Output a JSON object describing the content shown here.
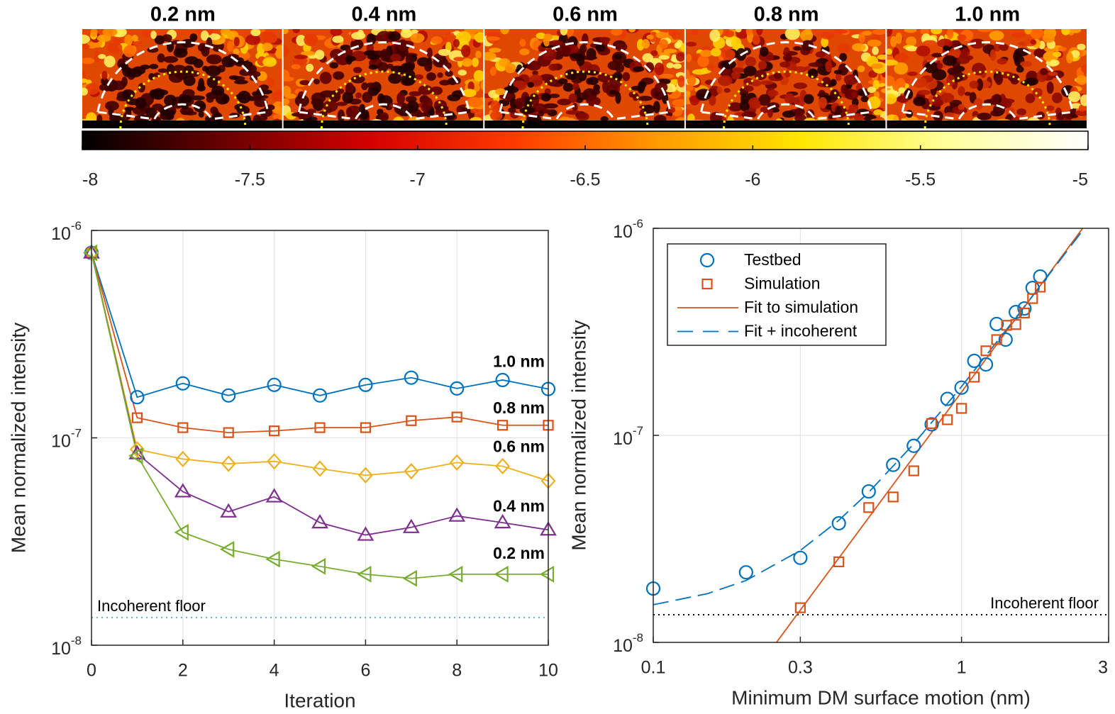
{
  "chart_data": [
    {
      "type": "colorbar",
      "panels": [
        "0.2 nm",
        "0.4 nm",
        "0.6 nm",
        "0.8 nm",
        "1.0 nm"
      ],
      "colors": [
        "#000000",
        "#6b0000",
        "#d40000",
        "#ff3a00",
        "#ff9a00",
        "#ffe600",
        "#ffff9a",
        "#ffffff"
      ],
      "xlim": [
        -8,
        -5
      ],
      "xticks": [
        -8,
        -7.5,
        -7,
        -6.5,
        -6,
        -5.5,
        -5
      ]
    },
    {
      "type": "line",
      "xlabel": "Iteration",
      "ylabel": "Mean normalized intensity",
      "x": [
        0,
        1,
        2,
        3,
        4,
        5,
        6,
        7,
        8,
        9,
        10
      ],
      "xlim": [
        0,
        10
      ],
      "xticks": [
        0,
        2,
        4,
        6,
        8,
        10
      ],
      "ylim": [
        1e-08,
        1e-06
      ],
      "log_y": true,
      "grid": true,
      "yticks": [
        {
          "value": 1e-08,
          "label": "10^-8"
        },
        {
          "value": 1e-07,
          "label": "10^-7"
        },
        {
          "value": 1e-06,
          "label": "10^-6"
        }
      ],
      "series": [
        {
          "name": "1.0 nm",
          "color": "#0072BD",
          "marker": "circle",
          "values": [
            7.8e-07,
            1.57e-07,
            1.83e-07,
            1.6e-07,
            1.8e-07,
            1.6e-07,
            1.8e-07,
            1.95e-07,
            1.73e-07,
            1.9e-07,
            1.72e-07
          ]
        },
        {
          "name": "0.8 nm",
          "color": "#D95319",
          "marker": "square",
          "values": [
            7.8e-07,
            1.25e-07,
            1.12e-07,
            1.06e-07,
            1.08e-07,
            1.12e-07,
            1.12e-07,
            1.21e-07,
            1.26e-07,
            1.15e-07,
            1.15e-07
          ]
        },
        {
          "name": "0.6 nm",
          "color": "#EDB120",
          "marker": "diamond",
          "values": [
            7.8e-07,
            8.8e-08,
            7.9e-08,
            7.5e-08,
            7.7e-08,
            7.1e-08,
            6.6e-08,
            6.9e-08,
            7.6e-08,
            7.3e-08,
            6.2e-08
          ]
        },
        {
          "name": "0.4 nm",
          "color": "#7E2F8E",
          "marker": "triangle-up",
          "values": [
            7.8e-07,
            8.4e-08,
            5.5e-08,
            4.4e-08,
            5.2e-08,
            3.9e-08,
            3.4e-08,
            3.7e-08,
            4.2e-08,
            3.9e-08,
            3.6e-08
          ]
        },
        {
          "name": "0.2 nm",
          "color": "#77AC30",
          "marker": "triangle-left",
          "values": [
            7.8e-07,
            8.2e-08,
            3.5e-08,
            2.9e-08,
            2.6e-08,
            2.4e-08,
            2.2e-08,
            2.1e-08,
            2.2e-08,
            2.2e-08,
            2.2e-08
          ]
        }
      ],
      "floor": {
        "label": "Incoherent floor",
        "value": 1.36e-08,
        "color": "#4DBEEE"
      }
    },
    {
      "type": "scatter",
      "xlabel": "Minimum DM surface motion (nm)",
      "ylabel": "Mean normalized intensity",
      "xlim": [
        0.1,
        3
      ],
      "xticks": [
        0.1,
        0.3,
        1,
        3
      ],
      "log_x": true,
      "ylim": [
        1e-08,
        1e-06
      ],
      "log_y": true,
      "grid": true,
      "legend": "upper left",
      "yticks": [
        {
          "value": 1e-08,
          "label": "10^-8"
        },
        {
          "value": 1e-07,
          "label": "10^-7"
        },
        {
          "value": 1e-06,
          "label": "10^-6"
        }
      ],
      "series": [
        {
          "name": "Testbed",
          "color": "#0072BD",
          "marker": "circle",
          "mode": "markers",
          "x": [
            0.1,
            0.2,
            0.3,
            0.4,
            0.5,
            0.6,
            0.7,
            0.8,
            0.9,
            1.0,
            1.1,
            1.2,
            1.3,
            1.39,
            1.5,
            1.6,
            1.7,
            1.8
          ],
          "values": [
            1.82e-08,
            2.18e-08,
            2.56e-08,
            3.76e-08,
            5.36e-08,
            7.2e-08,
            8.9e-08,
            1.13e-07,
            1.5e-07,
            1.7e-07,
            2.29e-07,
            2.2e-07,
            3.45e-07,
            2.9e-07,
            3.94e-07,
            4.1e-07,
            5.15e-07,
            5.85e-07
          ]
        },
        {
          "name": "Simulation",
          "color": "#D95319",
          "marker": "square",
          "mode": "markers",
          "x": [
            0.3,
            0.4,
            0.5,
            0.6,
            0.7,
            0.8,
            0.9,
            1.0,
            1.1,
            1.2,
            1.3,
            1.4,
            1.5,
            1.6,
            1.7,
            1.8
          ],
          "values": [
            1.47e-08,
            2.45e-08,
            4.48e-08,
            5.04e-08,
            6.74e-08,
            1.14e-07,
            1.19e-07,
            1.35e-07,
            1.91e-07,
            2.56e-07,
            2.9e-07,
            3.4e-07,
            3.43e-07,
            3.9e-07,
            4.58e-07,
            5.2e-07
          ]
        },
        {
          "name": "Fit to simulation",
          "color": "#D95319",
          "mode": "line",
          "dash": "solid",
          "x": [
            0.251,
            2.47
          ],
          "values": [
            1e-08,
            1e-06
          ]
        },
        {
          "name": "Fit + incoherent",
          "color": "#0072BD",
          "mode": "line",
          "dash": "dashed",
          "x": [
            0.1,
            0.15,
            0.2,
            0.3,
            0.4,
            0.5,
            0.7,
            1,
            1.5,
            2,
            2.45
          ],
          "values": [
            1.52e-08,
            1.72e-08,
            1.99e-08,
            2.78e-08,
            3.89e-08,
            5.31e-08,
            9.1e-08,
            1.72e-07,
            3.7e-07,
            6.46e-07,
            9.6e-07
          ]
        }
      ],
      "floor": {
        "label": "Incoherent floor",
        "value": 1.36e-08,
        "color": "#000000"
      }
    }
  ]
}
